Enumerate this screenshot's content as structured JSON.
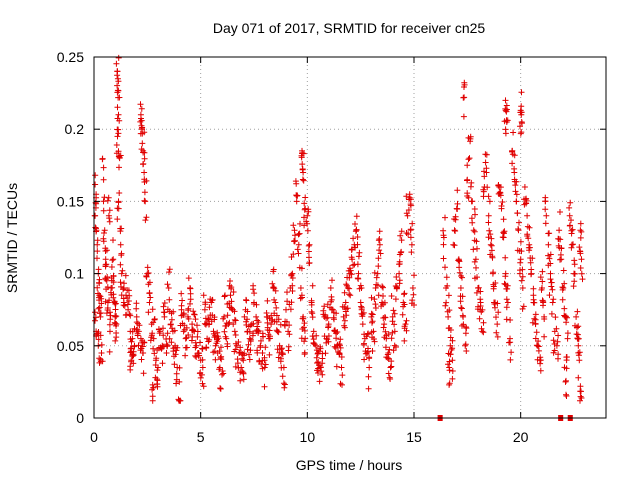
{
  "chart_data": {
    "type": "scatter",
    "title": "Day 071 of 2017, SRMTID for receiver cn25",
    "xlabel": "GPS time / hours",
    "ylabel": "SRMTID / TECUs",
    "xlim": [
      0,
      24
    ],
    "ylim": [
      0,
      0.25
    ],
    "x_ticks": [
      0,
      5,
      10,
      15,
      20
    ],
    "x_tick_labels": [
      "0",
      "5",
      "10",
      "15",
      "20"
    ],
    "y_ticks": [
      0,
      0.05,
      0.1,
      0.15,
      0.2,
      0.25
    ],
    "y_tick_labels": [
      "0",
      "0.05",
      "0.1",
      "0.15",
      "0.2",
      "0.25"
    ],
    "grid": true,
    "marker": "+",
    "color": "#e00000",
    "series": [
      {
        "name": "SRMTID (binned summary: x = hour-bin center, y = sample values)",
        "points": [
          [
            0.05,
            0.14
          ],
          [
            0.1,
            0.155
          ],
          [
            0.15,
            0.12
          ],
          [
            0.2,
            0.1
          ],
          [
            0.25,
            0.085
          ],
          [
            0.3,
            0.07
          ],
          [
            0.35,
            0.045
          ],
          [
            0.1,
            0.06
          ],
          [
            0.2,
            0.05
          ],
          [
            0.45,
            0.165
          ],
          [
            0.5,
            0.13
          ],
          [
            0.55,
            0.11
          ],
          [
            0.6,
            0.095
          ],
          [
            0.65,
            0.08
          ],
          [
            0.7,
            0.14
          ],
          [
            0.75,
            0.06
          ],
          [
            0.8,
            0.09
          ],
          [
            0.9,
            0.11
          ],
          [
            0.95,
            0.08
          ],
          [
            1.0,
            0.07
          ],
          [
            1.05,
            0.065
          ],
          [
            1.1,
            0.24
          ],
          [
            1.12,
            0.235
          ],
          [
            1.15,
            0.21
          ],
          [
            1.1,
            0.195
          ],
          [
            1.2,
            0.18
          ],
          [
            1.15,
            0.15
          ],
          [
            1.25,
            0.12
          ],
          [
            1.3,
            0.1
          ],
          [
            1.4,
            0.09
          ],
          [
            1.5,
            0.085
          ],
          [
            1.6,
            0.075
          ],
          [
            1.7,
            0.06
          ],
          [
            1.8,
            0.055
          ],
          [
            1.9,
            0.05
          ],
          [
            1.75,
            0.04
          ],
          [
            2.0,
            0.07
          ],
          [
            2.1,
            0.06
          ],
          [
            2.2,
            0.055
          ],
          [
            2.3,
            0.045
          ],
          [
            2.2,
            0.21
          ],
          [
            2.25,
            0.2
          ],
          [
            2.3,
            0.185
          ],
          [
            2.35,
            0.17
          ],
          [
            2.4,
            0.15
          ],
          [
            2.5,
            0.1
          ],
          [
            2.6,
            0.08
          ],
          [
            2.7,
            0.065
          ],
          [
            2.8,
            0.055
          ],
          [
            2.75,
            0.015
          ],
          [
            2.9,
            0.04
          ],
          [
            3.0,
            0.035
          ],
          [
            3.1,
            0.06
          ],
          [
            3.2,
            0.05
          ],
          [
            3.3,
            0.07
          ],
          [
            3.4,
            0.045
          ],
          [
            3.5,
            0.09
          ],
          [
            3.6,
            0.065
          ],
          [
            3.7,
            0.06
          ],
          [
            3.8,
            0.05
          ],
          [
            3.9,
            0.035
          ],
          [
            4.0,
            0.025
          ],
          [
            4.1,
            0.075
          ],
          [
            4.2,
            0.06
          ],
          [
            4.3,
            0.055
          ],
          [
            4.4,
            0.07
          ],
          [
            4.5,
            0.09
          ],
          [
            4.6,
            0.065
          ],
          [
            4.7,
            0.06
          ],
          [
            4.8,
            0.05
          ],
          [
            4.9,
            0.045
          ],
          [
            5.0,
            0.04
          ],
          [
            5.1,
            0.035
          ],
          [
            5.2,
            0.075
          ],
          [
            5.3,
            0.055
          ],
          [
            5.4,
            0.065
          ],
          [
            5.5,
            0.08
          ],
          [
            5.6,
            0.06
          ],
          [
            5.7,
            0.05
          ],
          [
            5.8,
            0.045
          ],
          [
            5.9,
            0.035
          ],
          [
            6.0,
            0.03
          ],
          [
            6.1,
            0.07
          ],
          [
            6.2,
            0.055
          ],
          [
            6.3,
            0.065
          ],
          [
            6.4,
            0.085
          ],
          [
            6.5,
            0.075
          ],
          [
            6.6,
            0.06
          ],
          [
            6.7,
            0.05
          ],
          [
            6.8,
            0.045
          ],
          [
            6.9,
            0.035
          ],
          [
            7.0,
            0.04
          ],
          [
            7.1,
            0.075
          ],
          [
            7.2,
            0.06
          ],
          [
            7.3,
            0.055
          ],
          [
            7.4,
            0.065
          ],
          [
            7.5,
            0.08
          ],
          [
            7.6,
            0.07
          ],
          [
            7.7,
            0.06
          ],
          [
            7.8,
            0.05
          ],
          [
            7.9,
            0.045
          ],
          [
            8.0,
            0.035
          ],
          [
            8.1,
            0.07
          ],
          [
            8.2,
            0.055
          ],
          [
            8.3,
            0.065
          ],
          [
            8.4,
            0.09
          ],
          [
            8.5,
            0.08
          ],
          [
            8.6,
            0.06
          ],
          [
            8.7,
            0.05
          ],
          [
            8.8,
            0.045
          ],
          [
            8.9,
            0.035
          ],
          [
            9.0,
            0.075
          ],
          [
            9.1,
            0.06
          ],
          [
            9.2,
            0.09
          ],
          [
            9.3,
            0.1
          ],
          [
            9.4,
            0.13
          ],
          [
            9.5,
            0.15
          ],
          [
            9.6,
            0.12
          ],
          [
            9.7,
            0.09
          ],
          [
            9.8,
            0.07
          ],
          [
            9.9,
            0.055
          ],
          [
            9.75,
            0.185
          ],
          [
            9.8,
            0.17
          ],
          [
            9.9,
            0.145
          ],
          [
            10.0,
            0.14
          ],
          [
            10.1,
            0.12
          ],
          [
            10.2,
            0.08
          ],
          [
            10.3,
            0.06
          ],
          [
            10.4,
            0.05
          ],
          [
            10.5,
            0.045
          ],
          [
            10.6,
            0.035
          ],
          [
            10.7,
            0.03
          ],
          [
            10.8,
            0.07
          ],
          [
            10.9,
            0.055
          ],
          [
            11.0,
            0.065
          ],
          [
            11.1,
            0.09
          ],
          [
            11.2,
            0.075
          ],
          [
            11.3,
            0.06
          ],
          [
            11.4,
            0.05
          ],
          [
            11.5,
            0.045
          ],
          [
            11.6,
            0.035
          ],
          [
            11.7,
            0.07
          ],
          [
            11.8,
            0.08
          ],
          [
            11.9,
            0.09
          ],
          [
            12.0,
            0.1
          ],
          [
            12.1,
            0.11
          ],
          [
            12.2,
            0.12
          ],
          [
            12.3,
            0.13
          ],
          [
            12.4,
            0.1
          ],
          [
            12.5,
            0.08
          ],
          [
            12.6,
            0.065
          ],
          [
            12.7,
            0.055
          ],
          [
            12.8,
            0.045
          ],
          [
            12.9,
            0.035
          ],
          [
            13.0,
            0.07
          ],
          [
            13.1,
            0.06
          ],
          [
            13.2,
            0.09
          ],
          [
            13.3,
            0.1
          ],
          [
            13.4,
            0.12
          ],
          [
            13.5,
            0.08
          ],
          [
            13.6,
            0.065
          ],
          [
            13.7,
            0.055
          ],
          [
            13.8,
            0.045
          ],
          [
            13.9,
            0.035
          ],
          [
            14.0,
            0.07
          ],
          [
            14.1,
            0.06
          ],
          [
            14.2,
            0.09
          ],
          [
            14.3,
            0.1
          ],
          [
            14.4,
            0.115
          ],
          [
            14.5,
            0.08
          ],
          [
            14.6,
            0.065
          ],
          [
            14.7,
            0.14
          ],
          [
            14.8,
            0.155
          ],
          [
            14.9,
            0.12
          ],
          [
            14.95,
            0.09
          ],
          [
            16.4,
            0.125
          ],
          [
            16.5,
            0.09
          ],
          [
            16.6,
            0.07
          ],
          [
            16.7,
            0.05
          ],
          [
            16.8,
            0.04
          ],
          [
            16.65,
            0.035
          ],
          [
            16.9,
            0.13
          ],
          [
            17.0,
            0.145
          ],
          [
            17.1,
            0.11
          ],
          [
            17.2,
            0.09
          ],
          [
            17.3,
            0.07
          ],
          [
            17.4,
            0.05
          ],
          [
            17.5,
            0.165
          ],
          [
            17.6,
            0.18
          ],
          [
            17.7,
            0.15
          ],
          [
            17.8,
            0.13
          ],
          [
            17.9,
            0.11
          ],
          [
            18.0,
            0.09
          ],
          [
            18.1,
            0.075
          ],
          [
            18.2,
            0.06
          ],
          [
            17.35,
            0.222
          ],
          [
            18.3,
            0.16
          ],
          [
            18.4,
            0.17
          ],
          [
            18.5,
            0.14
          ],
          [
            18.6,
            0.12
          ],
          [
            18.7,
            0.1
          ],
          [
            18.8,
            0.08
          ],
          [
            18.9,
            0.065
          ],
          [
            19.0,
            0.16
          ],
          [
            19.1,
            0.145
          ],
          [
            19.2,
            0.125
          ],
          [
            19.3,
            0.1
          ],
          [
            19.4,
            0.08
          ],
          [
            19.5,
            0.055
          ],
          [
            19.6,
            0.185
          ],
          [
            19.7,
            0.17
          ],
          [
            19.8,
            0.15
          ],
          [
            19.9,
            0.13
          ],
          [
            20.0,
            0.11
          ],
          [
            20.1,
            0.09
          ],
          [
            19.3,
            0.213
          ],
          [
            19.35,
            0.205
          ],
          [
            20.0,
            0.213
          ],
          [
            20.05,
            0.205
          ],
          [
            20.2,
            0.16
          ],
          [
            20.3,
            0.14
          ],
          [
            20.4,
            0.12
          ],
          [
            20.5,
            0.1
          ],
          [
            20.6,
            0.08
          ],
          [
            20.7,
            0.065
          ],
          [
            20.8,
            0.05
          ],
          [
            20.9,
            0.04
          ],
          [
            21.0,
            0.09
          ],
          [
            21.1,
            0.07
          ],
          [
            21.2,
            0.14
          ],
          [
            21.3,
            0.12
          ],
          [
            21.4,
            0.1
          ],
          [
            21.5,
            0.08
          ],
          [
            21.6,
            0.06
          ],
          [
            21.7,
            0.05
          ],
          [
            21.8,
            0.13
          ],
          [
            21.9,
            0.11
          ],
          [
            22.0,
            0.09
          ],
          [
            22.1,
            0.07
          ],
          [
            22.2,
            0.055
          ],
          [
            22.1,
            0.025
          ],
          [
            22.3,
            0.14
          ],
          [
            22.4,
            0.12
          ],
          [
            22.5,
            0.1
          ],
          [
            22.6,
            0.07
          ],
          [
            22.7,
            0.05
          ],
          [
            22.75,
            0.04
          ],
          [
            22.8,
            0.13
          ],
          [
            22.85,
            0.11
          ],
          [
            22.8,
            0.022
          ]
        ]
      }
    ],
    "zero_markers_x": [
      16.2,
      16.25,
      21.85,
      21.9,
      22.3,
      22.35
    ]
  }
}
